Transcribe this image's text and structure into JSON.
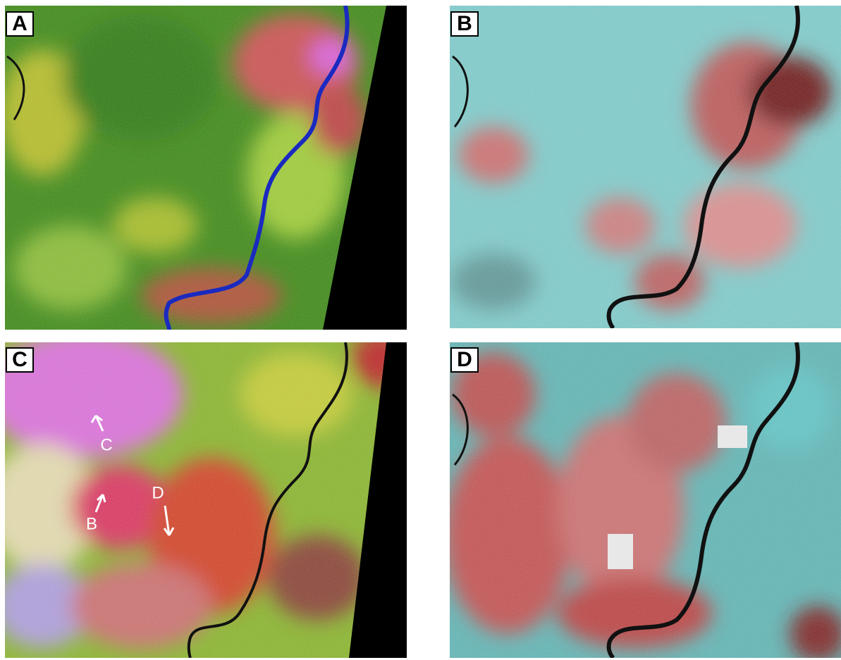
{
  "panels": [
    {
      "label": "A"
    },
    {
      "label": "B"
    },
    {
      "label": "C",
      "annotations": [
        "C",
        "B",
        "D"
      ]
    },
    {
      "label": "D"
    }
  ]
}
